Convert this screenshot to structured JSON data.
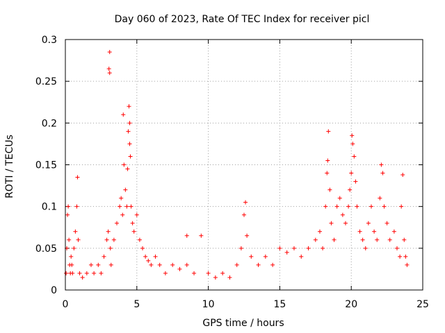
{
  "chart_data": {
    "type": "scatter",
    "title": "Day 060 of 2023, Rate Of TEC Index for receiver picl",
    "xlabel": "GPS time / hours",
    "ylabel": "ROTI / TECUs",
    "xlim": [
      0,
      25
    ],
    "ylim": [
      0,
      0.3
    ],
    "xticks": [
      "0",
      "5",
      "10",
      "15",
      "20",
      "25"
    ],
    "yticks": [
      "0",
      "0.05",
      "0.1",
      "0.15",
      "0.2",
      "0.25",
      "0.3"
    ],
    "grid": true,
    "marker": "+",
    "color": "#ff0000",
    "series": [
      {
        "x": [
          0.05,
          0.1,
          0.15,
          0.2,
          0.25,
          0.3,
          0.35,
          0.4,
          0.45,
          0.5,
          0.6,
          0.7,
          0.8,
          0.85,
          0.9,
          1.0,
          1.2,
          1.5,
          1.8,
          2.0,
          2.3,
          2.5,
          2.7,
          2.9,
          3.0,
          3.05,
          3.1,
          3.1,
          3.15,
          3.2,
          3.4,
          3.6,
          3.8,
          3.9,
          4.0,
          4.05,
          4.1,
          4.2,
          4.3,
          4.35,
          4.4,
          4.45,
          4.5,
          4.5,
          4.55,
          4.6,
          4.7,
          4.8,
          5.0,
          5.2,
          5.4,
          5.6,
          5.8,
          6.0,
          6.3,
          6.6,
          7.0,
          7.5,
          8.0,
          8.5,
          8.5,
          9.0,
          9.5,
          10.0,
          10.5,
          11.0,
          11.5,
          12.0,
          12.3,
          12.5,
          12.6,
          12.7,
          13.0,
          13.5,
          14.0,
          14.5,
          15.0,
          15.5,
          16.0,
          16.5,
          17.0,
          17.5,
          17.8,
          18.0,
          18.2,
          18.3,
          18.35,
          18.4,
          18.5,
          18.6,
          18.8,
          19.0,
          19.2,
          19.4,
          19.6,
          19.8,
          19.9,
          20.0,
          20.05,
          20.1,
          20.2,
          20.3,
          20.4,
          20.6,
          20.8,
          21.0,
          21.2,
          21.4,
          21.6,
          21.8,
          22.0,
          22.1,
          22.2,
          22.3,
          22.5,
          22.7,
          23.0,
          23.2,
          23.4,
          23.5,
          23.6,
          23.7,
          23.8,
          23.9
        ],
        "y": [
          0.02,
          0.05,
          0.09,
          0.1,
          0.06,
          0.03,
          0.02,
          0.04,
          0.03,
          0.02,
          0.05,
          0.07,
          0.1,
          0.135,
          0.06,
          0.02,
          0.015,
          0.02,
          0.03,
          0.02,
          0.03,
          0.02,
          0.04,
          0.06,
          0.07,
          0.265,
          0.285,
          0.26,
          0.05,
          0.03,
          0.06,
          0.08,
          0.1,
          0.11,
          0.09,
          0.21,
          0.15,
          0.12,
          0.1,
          0.145,
          0.19,
          0.22,
          0.2,
          0.175,
          0.16,
          0.1,
          0.08,
          0.07,
          0.09,
          0.06,
          0.05,
          0.04,
          0.035,
          0.03,
          0.04,
          0.03,
          0.02,
          0.03,
          0.025,
          0.065,
          0.03,
          0.02,
          0.065,
          0.02,
          0.015,
          0.02,
          0.015,
          0.03,
          0.05,
          0.09,
          0.105,
          0.065,
          0.04,
          0.03,
          0.04,
          0.03,
          0.05,
          0.045,
          0.05,
          0.04,
          0.05,
          0.06,
          0.07,
          0.05,
          0.1,
          0.14,
          0.155,
          0.19,
          0.12,
          0.08,
          0.06,
          0.1,
          0.11,
          0.09,
          0.08,
          0.1,
          0.12,
          0.14,
          0.185,
          0.175,
          0.16,
          0.13,
          0.1,
          0.07,
          0.06,
          0.05,
          0.08,
          0.1,
          0.07,
          0.06,
          0.11,
          0.15,
          0.14,
          0.1,
          0.08,
          0.06,
          0.07,
          0.05,
          0.04,
          0.1,
          0.138,
          0.06,
          0.04,
          0.03
        ]
      }
    ]
  }
}
